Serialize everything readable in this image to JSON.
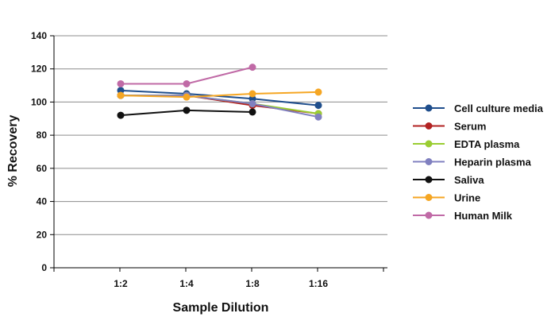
{
  "chart_data": {
    "type": "line",
    "title": "",
    "xlabel": "Sample Dilution",
    "ylabel": "% Recovery",
    "categories": [
      "1:2",
      "1:4",
      "1:8",
      "1:16"
    ],
    "ylim": [
      0,
      140
    ],
    "yticks": [
      0,
      20,
      40,
      60,
      80,
      100,
      120,
      140
    ],
    "grid": true,
    "legend_position": "right",
    "series": [
      {
        "name": "Cell culture media",
        "color": "#1f4e8c",
        "values": [
          107,
          105,
          102,
          98
        ]
      },
      {
        "name": "Serum",
        "color": "#b22222",
        "values": [
          104,
          104,
          98,
          93
        ]
      },
      {
        "name": "EDTA plasma",
        "color": "#9acd32",
        "values": [
          104,
          104,
          99,
          93
        ]
      },
      {
        "name": "Heparin plasma",
        "color": "#8080c0",
        "values": [
          104,
          104,
          99,
          91
        ]
      },
      {
        "name": "Saliva",
        "color": "#111111",
        "values": [
          92,
          95,
          94,
          null
        ]
      },
      {
        "name": "Urine",
        "color": "#f5a623",
        "values": [
          104,
          103,
          105,
          106
        ]
      },
      {
        "name": "Human Milk",
        "color": "#c06aa6",
        "values": [
          111,
          111,
          121,
          null
        ]
      }
    ]
  }
}
